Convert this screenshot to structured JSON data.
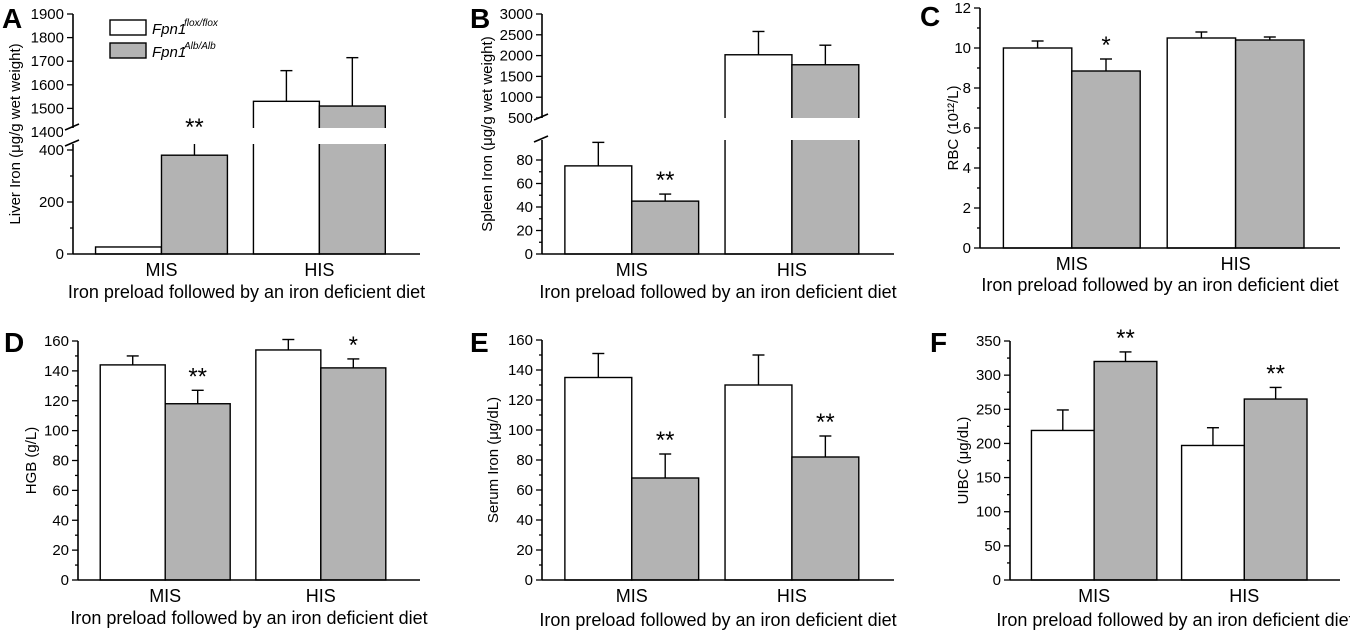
{
  "colors": {
    "series1": "#ffffff",
    "series2": "#b3b3b3"
  },
  "legend": {
    "series1": {
      "name": "Fpn1",
      "sup": "flox/flox"
    },
    "series2": {
      "name": "Fpn1",
      "sup": "Alb/Alb"
    }
  },
  "chart_data": [
    {
      "panel": "A",
      "type": "bar",
      "broken_axis": true,
      "categories": [
        "MIS",
        "HIS"
      ],
      "xlabel": "Iron preload followed by an iron deficient diet",
      "ylabel": "Liver Iron (μg/g wet weight)",
      "yticks_lower": [
        "0",
        "200",
        "400"
      ],
      "yticks_upper": [
        "1400",
        "1500",
        "1600",
        "1700",
        "1800",
        "1900"
      ],
      "series": [
        {
          "name": "Fpn1 flox/flox",
          "values": [
            27,
            1530
          ],
          "errors": [
            0,
            130
          ]
        },
        {
          "name": "Fpn1 Alb/Alb",
          "values": [
            380,
            1510
          ],
          "errors": [
            55,
            205
          ]
        }
      ],
      "significance": [
        {
          "category": "MIS",
          "series": 1,
          "label": "**"
        }
      ]
    },
    {
      "panel": "B",
      "type": "bar",
      "broken_axis": true,
      "categories": [
        "MIS",
        "HIS"
      ],
      "xlabel": "Iron preload followed by an iron deficient diet",
      "ylabel": "Spleen Iron (μg/g wet weight)",
      "yticks_lower": [
        "0",
        "20",
        "40",
        "60",
        "80"
      ],
      "yticks_upper": [
        "500",
        "1000",
        "1500",
        "2000",
        "2500",
        "3000"
      ],
      "series": [
        {
          "name": "Fpn1 flox/flox",
          "values": [
            75,
            2020
          ],
          "errors": [
            20,
            560
          ]
        },
        {
          "name": "Fpn1 Alb/Alb",
          "values": [
            45,
            1780
          ],
          "errors": [
            6,
            470
          ]
        }
      ],
      "significance": [
        {
          "category": "MIS",
          "series": 1,
          "label": "**"
        }
      ]
    },
    {
      "panel": "C",
      "type": "bar",
      "categories": [
        "MIS",
        "HIS"
      ],
      "xlabel": "Iron preload followed by an iron deficient diet",
      "ylabel": "RBC (10¹²/L)",
      "ylim": [
        0,
        12
      ],
      "yticks": [
        "0",
        "2",
        "4",
        "6",
        "8",
        "10",
        "12"
      ],
      "series": [
        {
          "name": "Fpn1 flox/flox",
          "values": [
            10.0,
            10.5
          ],
          "errors": [
            0.35,
            0.3
          ]
        },
        {
          "name": "Fpn1 Alb/Alb",
          "values": [
            8.85,
            10.4
          ],
          "errors": [
            0.6,
            0.15
          ]
        }
      ],
      "significance": [
        {
          "category": "MIS",
          "series": 1,
          "label": "*"
        }
      ]
    },
    {
      "panel": "D",
      "type": "bar",
      "categories": [
        "MIS",
        "HIS"
      ],
      "xlabel": "Iron preload followed by an iron deficient diet",
      "ylabel": "HGB (g/L)",
      "ylim": [
        0,
        160
      ],
      "yticks": [
        "0",
        "20",
        "40",
        "60",
        "80",
        "100",
        "120",
        "140",
        "160"
      ],
      "series": [
        {
          "name": "Fpn1 flox/flox",
          "values": [
            144,
            154
          ],
          "errors": [
            6,
            7
          ]
        },
        {
          "name": "Fpn1 Alb/Alb",
          "values": [
            118,
            142
          ],
          "errors": [
            9,
            6
          ]
        }
      ],
      "significance": [
        {
          "category": "MIS",
          "series": 1,
          "label": "**"
        },
        {
          "category": "HIS",
          "series": 1,
          "label": "*"
        }
      ]
    },
    {
      "panel": "E",
      "type": "bar",
      "categories": [
        "MIS",
        "HIS"
      ],
      "xlabel": "Iron preload followed by an iron deficient diet",
      "ylabel": "Serum Iron (μg/dL)",
      "ylim": [
        0,
        160
      ],
      "yticks": [
        "0",
        "20",
        "40",
        "60",
        "80",
        "100",
        "120",
        "140",
        "160"
      ],
      "series": [
        {
          "name": "Fpn1 flox/flox",
          "values": [
            135,
            130
          ],
          "errors": [
            16,
            20
          ]
        },
        {
          "name": "Fpn1 Alb/Alb",
          "values": [
            68,
            82
          ],
          "errors": [
            16,
            14
          ]
        }
      ],
      "significance": [
        {
          "category": "MIS",
          "series": 1,
          "label": "**"
        },
        {
          "category": "HIS",
          "series": 1,
          "label": "**"
        }
      ]
    },
    {
      "panel": "F",
      "type": "bar",
      "categories": [
        "MIS",
        "HIS"
      ],
      "xlabel": "Iron preload followed by an iron deficient diet",
      "ylabel": "UIBC (μg/dL)",
      "ylim": [
        0,
        350
      ],
      "yticks": [
        "0",
        "50",
        "100",
        "150",
        "200",
        "250",
        "300",
        "350"
      ],
      "series": [
        {
          "name": "Fpn1 flox/flox",
          "values": [
            219,
            197
          ],
          "errors": [
            30,
            26
          ]
        },
        {
          "name": "Fpn1 Alb/Alb",
          "values": [
            320,
            265
          ],
          "errors": [
            14,
            17
          ]
        }
      ],
      "significance": [
        {
          "category": "MIS",
          "series": 1,
          "label": "**"
        },
        {
          "category": "HIS",
          "series": 1,
          "label": "**"
        }
      ]
    }
  ]
}
